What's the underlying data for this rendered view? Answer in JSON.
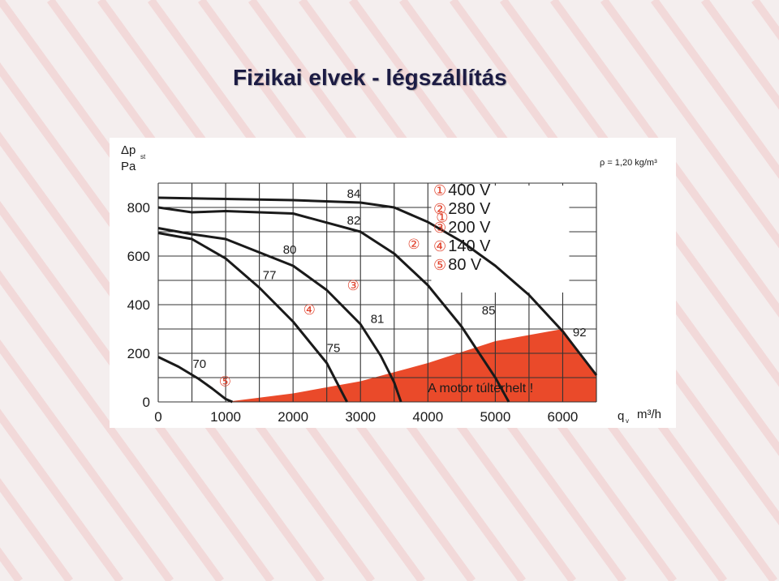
{
  "title": "Fizikai elvek - légszállítás",
  "colors": {
    "overload": "#ea4a2a",
    "curve": "#1a1a1a",
    "grid": "#333333",
    "marker": "#e0402a"
  },
  "chart_data": {
    "type": "line",
    "ylabel_symbol": "Δp",
    "ylabel_subscript": "st",
    "ylabel_unit": "Pa",
    "xlabel_symbol": "q",
    "xlabel_subscript": "v",
    "xlabel_unit": "m³/h",
    "x_ticks": [
      0,
      1000,
      2000,
      3000,
      4000,
      5000,
      6000
    ],
    "y_ticks": [
      0,
      200,
      400,
      600,
      800
    ],
    "xlim": [
      0,
      6500
    ],
    "ylim": [
      0,
      900
    ],
    "density_note": "ρ = 1,20 kg/m³",
    "overload_label": "A motor túlterhelt !",
    "overload_region": {
      "x": [
        1000,
        2000,
        3000,
        4000,
        5000,
        6000,
        6500,
        6500
      ],
      "y": [
        0,
        35,
        85,
        160,
        250,
        300,
        110,
        0
      ]
    },
    "series": [
      {
        "name": "400 V",
        "marker": "①",
        "x": [
          0,
          1000,
          2000,
          3000,
          3500,
          4000,
          4500,
          5000,
          5500,
          6000,
          6500
        ],
        "y": [
          840,
          835,
          830,
          820,
          800,
          740,
          660,
          560,
          440,
          290,
          110
        ]
      },
      {
        "name": "280 V",
        "marker": "②",
        "x": [
          0,
          500,
          1000,
          2000,
          3000,
          3500,
          4000,
          4500,
          5000,
          5200
        ],
        "y": [
          800,
          780,
          785,
          775,
          700,
          610,
          480,
          310,
          100,
          0
        ]
      },
      {
        "name": "200 V",
        "marker": "③",
        "x": [
          0,
          500,
          1000,
          2000,
          2500,
          3000,
          3300,
          3500,
          3600
        ],
        "y": [
          715,
          690,
          670,
          560,
          460,
          320,
          190,
          80,
          0
        ]
      },
      {
        "name": "140 V",
        "marker": "④",
        "x": [
          0,
          500,
          1000,
          1500,
          2000,
          2500,
          2800
        ],
        "y": [
          695,
          670,
          590,
          470,
          330,
          160,
          0
        ]
      },
      {
        "name": "80 V",
        "marker": "⑤",
        "x": [
          0,
          300,
          600,
          800,
          1000,
          1100
        ],
        "y": [
          185,
          145,
          95,
          55,
          12,
          0
        ]
      }
    ],
    "annotations": [
      {
        "text": "84",
        "x": 2800,
        "y": 840
      },
      {
        "text": "82",
        "x": 2800,
        "y": 730
      },
      {
        "text": "80",
        "x": 1850,
        "y": 610
      },
      {
        "text": "77",
        "x": 1550,
        "y": 505
      },
      {
        "text": "81",
        "x": 3150,
        "y": 325
      },
      {
        "text": "75",
        "x": 2500,
        "y": 205
      },
      {
        "text": "70",
        "x": 510,
        "y": 140
      },
      {
        "text": "85",
        "x": 4800,
        "y": 360
      },
      {
        "text": "92",
        "x": 6150,
        "y": 270
      },
      {
        "text": "①",
        "x": 4120,
        "y": 740
      },
      {
        "text": "②",
        "x": 3700,
        "y": 630
      },
      {
        "text": "③",
        "x": 2800,
        "y": 460
      },
      {
        "text": "④",
        "x": 2150,
        "y": 360
      },
      {
        "text": "⑤",
        "x": 900,
        "y": 65
      }
    ]
  }
}
